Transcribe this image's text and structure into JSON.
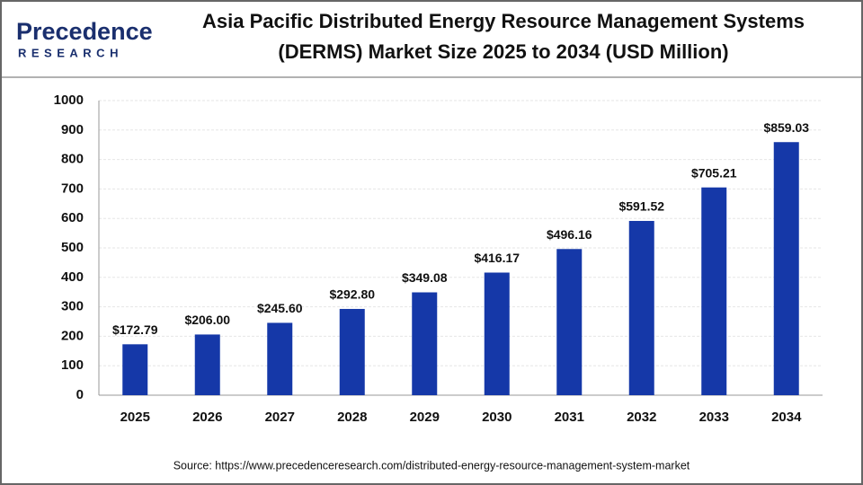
{
  "logo": {
    "name": "Precedence",
    "tagline": "RESEARCH"
  },
  "chart_data": {
    "type": "bar",
    "title": [
      "Asia Pacific Distributed Energy Resource Management Systems",
      "(DERMS) Market Size 2025 to 2034 (USD Million)"
    ],
    "categories": [
      "2025",
      "2026",
      "2027",
      "2028",
      "2029",
      "2030",
      "2031",
      "2032",
      "2033",
      "2034"
    ],
    "values": [
      172.79,
      206,
      245.6,
      292.8,
      349.08,
      416.17,
      496.16,
      591.52,
      705.21,
      859.03
    ],
    "value_labels": [
      "$172.79",
      "$206.00",
      "$245.60",
      "$292.80",
      "$349.08",
      "$416.17",
      "$496.16",
      "$591.52",
      "$705.21",
      "$859.03"
    ],
    "color": "#1538a8",
    "ylim": [
      0,
      1000
    ],
    "yticks": [
      0,
      100,
      200,
      300,
      400,
      500,
      600,
      700,
      800,
      900,
      1000
    ],
    "grid": true,
    "source": "Source: https://www.precedenceresearch.com/distributed-energy-resource-management-system-market"
  }
}
